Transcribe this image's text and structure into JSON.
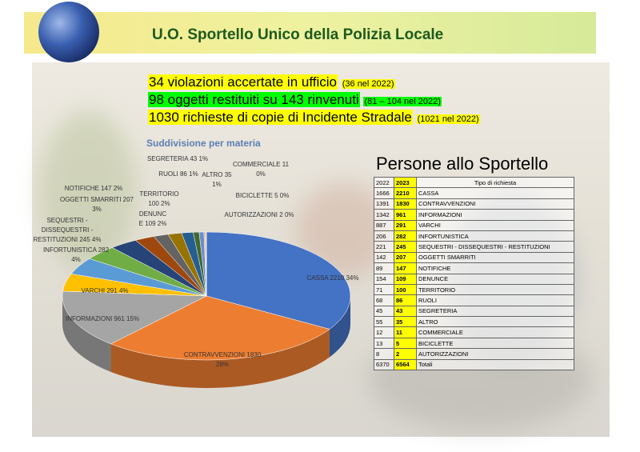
{
  "header": {
    "title": "U.O. Sportello Unico della Polizia Locale"
  },
  "highlights": [
    {
      "text": "34 violazioni accertate in ufficio",
      "note": "(36 nel 2022)"
    },
    {
      "text": "98 oggetti restituiti su 143 rinvenuti",
      "note": "(81 – 104 nel 2022)"
    },
    {
      "text": "1030 richieste di copie di Incidente Stradale",
      "note": "(1021 nel 2022)"
    }
  ],
  "chart_data": {
    "type": "pie",
    "title": "Suddivisione per materia",
    "categories": [
      "CASSA",
      "CONTRAVVENZIONI",
      "INFORMAZIONI",
      "VARCHI",
      "INFORTUNISTICA",
      "SEQUESTRI - DISSEQUESTRI - RESTITUZIONI",
      "OGGETTI SMARRITI",
      "NOTIFICHE",
      "DENUNCE",
      "TERRITORIO",
      "RUOLI",
      "SEGRETERIA",
      "ALTRO",
      "COMMERCIALE",
      "BICICLETTE",
      "AUTORIZZAZIONI"
    ],
    "values": [
      2210,
      1830,
      961,
      291,
      282,
      245,
      207,
      147,
      109,
      100,
      86,
      43,
      35,
      11,
      5,
      2
    ],
    "shares": [
      34,
      28,
      15,
      4,
      4,
      4,
      3,
      2,
      2,
      2,
      1,
      1,
      1,
      0,
      0,
      0
    ],
    "share_labels": [
      "34%",
      "28%",
      "15%",
      "4%",
      "4%",
      "4%",
      "3%",
      "2%",
      "2%",
      "2%",
      "1%",
      "1%",
      "1%",
      "0%",
      "0%",
      "0%"
    ],
    "colors": [
      "#4472c4",
      "#ed7d31",
      "#a5a5a5",
      "#ffc000",
      "#5b9bd5",
      "#70ad47",
      "#264478",
      "#9e480e",
      "#636363",
      "#997300",
      "#255e91",
      "#43682b",
      "#698ed0",
      "#f1975a",
      "#b7b7b7",
      "#ffcd33"
    ]
  },
  "table": {
    "title": "Persone allo Sportello",
    "header": [
      "2022",
      "2023",
      "Tipo di richiesta"
    ],
    "rows": [
      [
        "1666",
        "2210",
        "CASSA"
      ],
      [
        "1391",
        "1830",
        "CONTRAVVENZIONI"
      ],
      [
        "1342",
        "961",
        "INFORMAZIONI"
      ],
      [
        "887",
        "291",
        "VARCHI"
      ],
      [
        "206",
        "282",
        "INFORTUNISTICA"
      ],
      [
        "221",
        "245",
        "SEQUESTRI - DISSEQUESTRI - RESTITUZIONI"
      ],
      [
        "142",
        "207",
        "OGGETTI SMARRITI"
      ],
      [
        "89",
        "147",
        "NOTIFICHE"
      ],
      [
        "154",
        "109",
        "DENUNCE"
      ],
      [
        "71",
        "100",
        "TERRITORIO"
      ],
      [
        "68",
        "86",
        "RUOLI"
      ],
      [
        "45",
        "43",
        "SEGRETERIA"
      ],
      [
        "55",
        "35",
        "ALTRO"
      ],
      [
        "12",
        "11",
        "COMMERCIALE"
      ],
      [
        "13",
        "5",
        "BICICLETTE"
      ],
      [
        "8",
        "2",
        "AUTORIZZAZIONI"
      ],
      [
        "6370",
        "6564",
        "Totali"
      ]
    ]
  }
}
